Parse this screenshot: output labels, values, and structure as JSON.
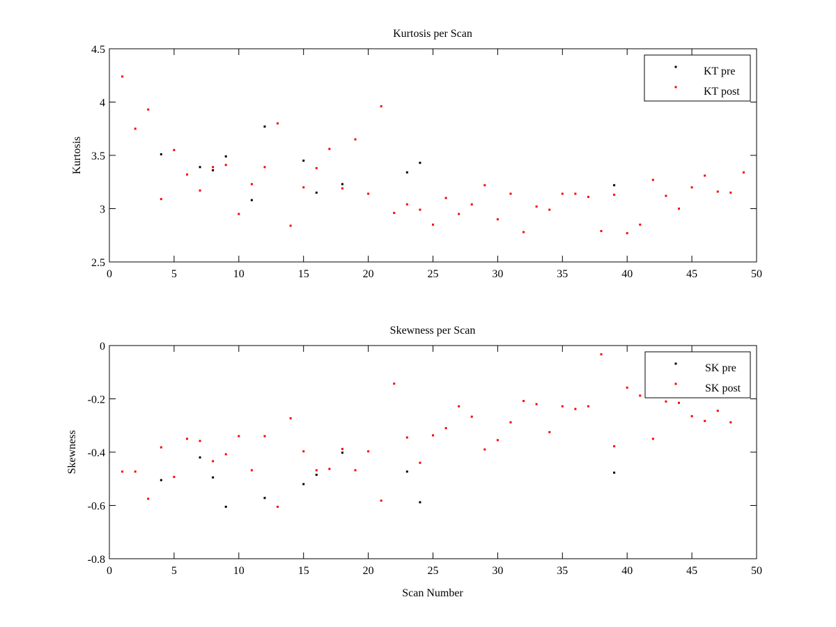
{
  "figure": {
    "background": "#ffffff"
  },
  "chart_data": [
    {
      "type": "scatter",
      "title": "Kurtosis per Scan",
      "xlabel": "",
      "ylabel": "Kurtosis",
      "xlim": [
        0,
        50
      ],
      "ylim": [
        2.5,
        4.5
      ],
      "xticks": [
        0,
        5,
        10,
        15,
        20,
        25,
        30,
        35,
        40,
        45,
        50
      ],
      "yticks": [
        2.5,
        3,
        3.5,
        4,
        4.5
      ],
      "xtick_labels": [
        "0",
        "5",
        "10",
        "15",
        "20",
        "25",
        "30",
        "35",
        "40",
        "45",
        "50"
      ],
      "ytick_labels": [
        "2.5",
        "3",
        "3.5",
        "4",
        "4.5"
      ],
      "grid": false,
      "legend_position": "top-right",
      "series": [
        {
          "name": "KT pre",
          "color": "#000000",
          "marker": "dot",
          "x": [
            4,
            7,
            8,
            9,
            11,
            12,
            15,
            16,
            18,
            23,
            24,
            39
          ],
          "y": [
            3.51,
            3.39,
            3.36,
            3.49,
            3.08,
            3.77,
            3.45,
            3.15,
            3.23,
            3.34,
            3.43,
            3.22
          ]
        },
        {
          "name": "KT post",
          "color": "#ff0000",
          "marker": "dot",
          "x": [
            1,
            2,
            3,
            4,
            5,
            6,
            7,
            8,
            9,
            10,
            11,
            12,
            13,
            14,
            15,
            16,
            17,
            18,
            19,
            20,
            21,
            22,
            23,
            24,
            25,
            26,
            27,
            28,
            29,
            30,
            31,
            32,
            33,
            34,
            35,
            36,
            37,
            38,
            39,
            40,
            41,
            42,
            43,
            44,
            45,
            46,
            47,
            48,
            49
          ],
          "y": [
            4.24,
            3.75,
            3.93,
            3.09,
            3.55,
            3.32,
            3.17,
            3.39,
            3.41,
            2.95,
            3.23,
            3.39,
            3.8,
            2.84,
            3.2,
            3.38,
            3.56,
            3.19,
            3.65,
            3.14,
            3.96,
            2.96,
            3.04,
            2.99,
            2.85,
            3.1,
            2.95,
            3.04,
            3.22,
            2.9,
            3.14,
            2.78,
            3.02,
            2.99,
            3.14,
            3.14,
            3.11,
            2.79,
            3.13,
            2.77,
            2.85,
            3.27,
            3.12,
            3.0,
            3.2,
            3.31,
            3.16,
            3.15,
            3.34
          ]
        }
      ]
    },
    {
      "type": "scatter",
      "title": "Skewness per Scan",
      "xlabel": "Scan Number",
      "ylabel": "Skewness",
      "xlim": [
        0,
        50
      ],
      "ylim": [
        -0.8,
        0
      ],
      "xticks": [
        0,
        5,
        10,
        15,
        20,
        25,
        30,
        35,
        40,
        45,
        50
      ],
      "yticks": [
        -0.8,
        -0.6,
        -0.4,
        -0.2,
        0
      ],
      "xtick_labels": [
        "0",
        "5",
        "10",
        "15",
        "20",
        "25",
        "30",
        "35",
        "40",
        "45",
        "50"
      ],
      "ytick_labels": [
        "-0.8",
        "-0.6",
        "-0.4",
        "-0.2",
        "0"
      ],
      "grid": false,
      "legend_position": "top-right",
      "series": [
        {
          "name": "SK pre",
          "color": "#000000",
          "marker": "dot",
          "x": [
            4,
            7,
            8,
            9,
            12,
            15,
            16,
            18,
            23,
            24,
            39
          ],
          "y": [
            -0.505,
            -0.42,
            -0.495,
            -0.605,
            -0.572,
            -0.52,
            -0.485,
            -0.402,
            -0.473,
            -0.588,
            -0.477
          ]
        },
        {
          "name": "SK post",
          "color": "#ff0000",
          "marker": "dot",
          "x": [
            1,
            2,
            3,
            4,
            5,
            6,
            7,
            8,
            9,
            10,
            11,
            12,
            13,
            14,
            15,
            16,
            17,
            18,
            19,
            20,
            21,
            22,
            23,
            24,
            25,
            26,
            27,
            28,
            29,
            30,
            31,
            32,
            33,
            34,
            35,
            36,
            37,
            38,
            39,
            40,
            41,
            42,
            43,
            44,
            45,
            46,
            47,
            48
          ],
          "y": [
            -0.473,
            -0.473,
            -0.575,
            -0.382,
            -0.493,
            -0.35,
            -0.358,
            -0.434,
            -0.408,
            -0.34,
            -0.468,
            -0.34,
            -0.605,
            -0.273,
            -0.397,
            -0.468,
            -0.463,
            -0.388,
            -0.468,
            -0.397,
            -0.582,
            -0.143,
            -0.345,
            -0.44,
            -0.337,
            -0.31,
            -0.228,
            -0.267,
            -0.39,
            -0.355,
            -0.288,
            -0.208,
            -0.22,
            -0.325,
            -0.228,
            -0.238,
            -0.228,
            -0.033,
            -0.378,
            -0.158,
            -0.188,
            -0.35,
            -0.21,
            -0.215,
            -0.265,
            -0.283,
            -0.245,
            -0.288
          ]
        }
      ]
    }
  ]
}
